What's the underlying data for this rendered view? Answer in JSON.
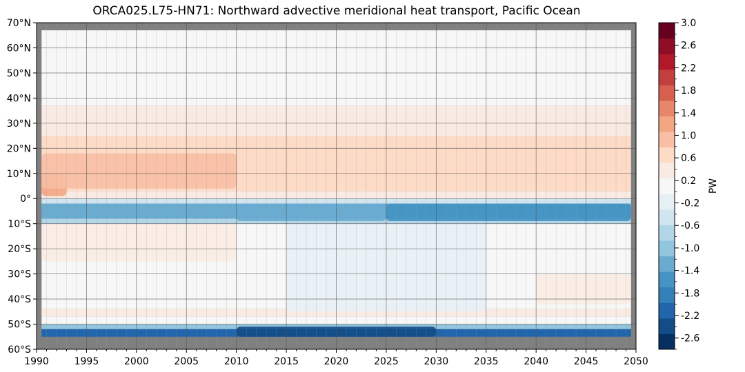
{
  "chart_data": {
    "type": "heatmap",
    "title": "ORCA025.L75-HN71: Northward advective meridional heat transport, Pacific Ocean",
    "xlabel": "",
    "ylabel": "",
    "x_range": [
      1990,
      2050
    ],
    "y_range": [
      -60,
      70
    ],
    "x_ticks": [
      1990,
      1995,
      2000,
      2005,
      2010,
      2015,
      2020,
      2025,
      2030,
      2035,
      2040,
      2045,
      2050
    ],
    "x_tick_labels": [
      "1990",
      "1995",
      "2000",
      "2005",
      "2010",
      "2015",
      "2020",
      "2025",
      "2030",
      "2035",
      "2040",
      "2045",
      "2050"
    ],
    "y_ticks": [
      70,
      60,
      50,
      40,
      30,
      20,
      10,
      0,
      -10,
      -20,
      -30,
      -40,
      -50,
      -60
    ],
    "y_tick_labels": [
      "70°N",
      "60°N",
      "50°N",
      "40°N",
      "30°N",
      "20°N",
      "10°N",
      "0°",
      "10°S",
      "20°S",
      "30°S",
      "40°S",
      "50°S",
      "60°S"
    ],
    "grid": true,
    "missing_color": "#808080",
    "colorbar": {
      "label": "PW",
      "range": [
        -2.8,
        3.0
      ],
      "tick_labels": [
        "3.0",
        "2.6",
        "2.2",
        "1.8",
        "1.4",
        "1.0",
        "0.6",
        "0.2",
        "-0.2",
        "-0.6",
        "-1.0",
        "-1.4",
        "-1.8",
        "-2.2",
        "-2.6"
      ],
      "tick_values": [
        3.0,
        2.6,
        2.2,
        1.8,
        1.4,
        1.0,
        0.6,
        0.2,
        -0.2,
        -0.6,
        -1.0,
        -1.4,
        -1.8,
        -2.2,
        -2.6
      ],
      "colors": [
        "#053061",
        "#124d87",
        "#2166ac",
        "#3480b9",
        "#4393c3",
        "#6aacd0",
        "#92c5de",
        "#b2d5e7",
        "#d1e5f0",
        "#e7f0f5",
        "#f7f7f7",
        "#f9ebe3",
        "#fddbc7",
        "#f8bfa4",
        "#f4a582",
        "#e7866a",
        "#d6604d",
        "#c23f3d",
        "#b2182b",
        "#8f0d25",
        "#67001f"
      ]
    },
    "data_extent": {
      "lat": [
        -55,
        67
      ],
      "year": [
        1990.5,
        2049.5
      ]
    },
    "bands": [
      {
        "lat_from": 67,
        "lat_to": 37,
        "value": 0.1,
        "note": ""
      },
      {
        "lat_from": 37,
        "lat_to": 25,
        "value": 0.4
      },
      {
        "lat_from": 25,
        "lat_to": 3,
        "value": 0.7
      },
      {
        "lat_from": 3,
        "lat_to": 0,
        "value": 0.4
      },
      {
        "lat_from": 0,
        "lat_to": -2,
        "value": -0.5
      },
      {
        "lat_from": -2,
        "lat_to": -8,
        "value": -1.2
      },
      {
        "lat_from": -8,
        "lat_to": -10,
        "value": -0.6
      },
      {
        "lat_from": -10,
        "lat_to": -44,
        "value": 0.2
      },
      {
        "lat_from": -44,
        "lat_to": -47,
        "value": 0.5
      },
      {
        "lat_from": -47,
        "lat_to": -50,
        "value": 0.0
      },
      {
        "lat_from": -50,
        "lat_to": -52,
        "value": -1.0
      },
      {
        "lat_from": -52,
        "lat_to": -55,
        "value": -2.2
      }
    ],
    "features": [
      {
        "year_from": 1990.5,
        "year_to": 1993,
        "lat_from": 10,
        "lat_to": 1,
        "value": 1.2
      },
      {
        "year_from": 1990.5,
        "year_to": 2010,
        "lat_from": 18,
        "lat_to": 4,
        "value": 0.9
      },
      {
        "year_from": 2010,
        "year_to": 2025,
        "lat_from": -2,
        "lat_to": -9,
        "value": -1.4
      },
      {
        "year_from": 2025,
        "year_to": 2049.5,
        "lat_from": -2,
        "lat_to": -9,
        "value": -1.5
      },
      {
        "year_from": 2010,
        "year_to": 2030,
        "lat_from": -51,
        "lat_to": -55,
        "value": -2.5
      },
      {
        "year_from": 2015,
        "year_to": 2035,
        "lat_from": -10,
        "lat_to": -45,
        "value": -0.1
      },
      {
        "year_from": 2040,
        "year_to": 2049.5,
        "lat_from": -30,
        "lat_to": -42,
        "value": 0.4
      },
      {
        "year_from": 1990.5,
        "year_to": 2010,
        "lat_from": -10,
        "lat_to": -25,
        "value": 0.4
      }
    ]
  }
}
